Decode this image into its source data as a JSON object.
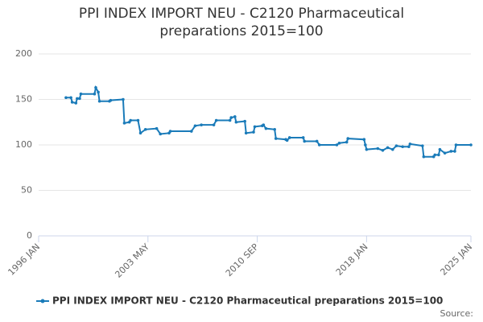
{
  "chart_data": {
    "type": "line",
    "title": "PPI INDEX IMPORT NEU - C2120 Pharmaceutical preparations 2015=100",
    "source": "Source:",
    "x": [
      "1997-11",
      "1998-03",
      "1998-04",
      "1998-07",
      "1998-08",
      "1998-10",
      "1998-11",
      "1999-10",
      "1999-11",
      "2000-01",
      "2000-02",
      "2000-10",
      "2000-11",
      "2001-09",
      "2001-10",
      "2002-02",
      "2002-03",
      "2002-09",
      "2002-11",
      "2003-03",
      "2003-12",
      "2004-03",
      "2004-10",
      "2004-11",
      "2006-04",
      "2006-07",
      "2006-12",
      "2007-10",
      "2007-12",
      "2008-11",
      "2008-12",
      "2009-03",
      "2009-04",
      "2009-11",
      "2009-12",
      "2010-06",
      "2010-07",
      "2011-01",
      "2011-02",
      "2011-04",
      "2011-11",
      "2011-12",
      "2012-08",
      "2012-09",
      "2012-11",
      "2013-10",
      "2013-11",
      "2014-09",
      "2014-11",
      "2016-01",
      "2016-03",
      "2016-09",
      "2016-10",
      "2017-11",
      "2017-12",
      "2018-01",
      "2018-10",
      "2019-02",
      "2019-06",
      "2019-10",
      "2020-01",
      "2020-06",
      "2020-11",
      "2020-12",
      "2021-10",
      "2021-11",
      "2022-07",
      "2022-08",
      "2022-11",
      "2022-12",
      "2023-04",
      "2023-09",
      "2023-12",
      "2024-01",
      "2025-01"
    ],
    "series": [
      {
        "name": "PPI INDEX IMPORT NEU - C2120 Pharmaceutical preparations 2015=100",
        "color": "#1a7bb9",
        "values": [
          152,
          152,
          147,
          146,
          151,
          151,
          156,
          156,
          163,
          158,
          148,
          148,
          149,
          150,
          124,
          125,
          127,
          127,
          113,
          117,
          118,
          112,
          113,
          115,
          115,
          121,
          122,
          122,
          127,
          127,
          130,
          131,
          125,
          126,
          113,
          114,
          120,
          121,
          122,
          118,
          117,
          107,
          106,
          105,
          108,
          108,
          104,
          104,
          100,
          100,
          102,
          103,
          107,
          106,
          100,
          95,
          96,
          94,
          97,
          95,
          99,
          98,
          98,
          101,
          99,
          87,
          87,
          89,
          89,
          95,
          91,
          93,
          93,
          100,
          100
        ]
      }
    ],
    "xlim": [
      "1996-01",
      "2025-01"
    ],
    "xticks": [
      {
        "value": "1996-01",
        "label": "1996 JAN"
      },
      {
        "value": "2003-05",
        "label": "2003 MAY"
      },
      {
        "value": "2010-09",
        "label": "2010 SEP"
      },
      {
        "value": "2018-01",
        "label": "2018 JAN"
      },
      {
        "value": "2025-01",
        "label": "2025 JAN"
      }
    ],
    "ylim": [
      0,
      200
    ],
    "yticks": [
      0,
      50,
      100,
      150,
      200
    ],
    "grid": true,
    "legend": "bottom"
  }
}
